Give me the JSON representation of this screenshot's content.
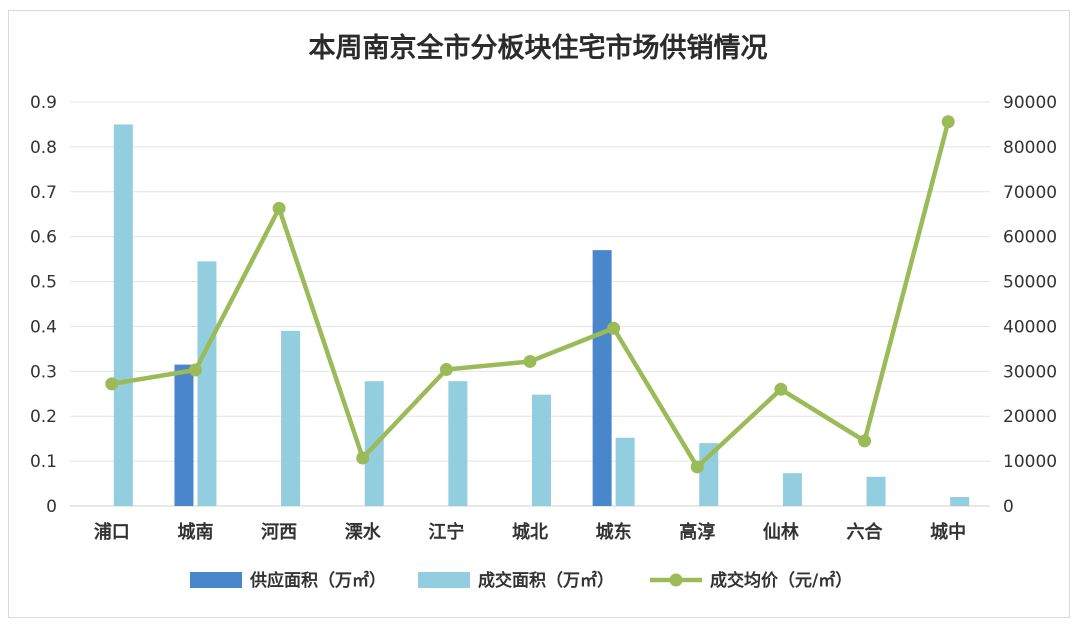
{
  "chart_data": {
    "type": "bar",
    "title": "本周南京全市分板块住宅市场供销情况",
    "categories": [
      "浦口",
      "城南",
      "河西",
      "溧水",
      "江宁",
      "城北",
      "城东",
      "高淳",
      "仙林",
      "六合",
      "城中"
    ],
    "series": [
      {
        "name": "供应面积（万㎡）",
        "type": "bar",
        "axis": "left",
        "color": "#4a86cc",
        "values": [
          0,
          0.315,
          0,
          0,
          0,
          0,
          0.57,
          0,
          0,
          0,
          0
        ]
      },
      {
        "name": "成交面积（万㎡）",
        "type": "bar",
        "axis": "left",
        "color": "#92cde0",
        "values": [
          0.85,
          0.545,
          0.39,
          0.278,
          0.278,
          0.248,
          0.152,
          0.14,
          0.073,
          0.065,
          0.02
        ]
      },
      {
        "name": "成交均价（元/㎡）",
        "type": "line",
        "axis": "right",
        "color": "#9bbb59",
        "values": [
          27200,
          30300,
          66300,
          10700,
          30400,
          32200,
          39600,
          8700,
          26000,
          14500,
          85600
        ]
      }
    ],
    "y_left": {
      "min": 0,
      "max": 0.9,
      "ticks": [
        "0",
        "0.1",
        "0.2",
        "0.3",
        "0.4",
        "0.5",
        "0.6",
        "0.7",
        "0.8",
        "0.9"
      ]
    },
    "y_right": {
      "min": 0,
      "max": 90000,
      "ticks": [
        "0",
        "10000",
        "20000",
        "30000",
        "40000",
        "50000",
        "60000",
        "70000",
        "80000",
        "90000"
      ]
    },
    "grid": true,
    "legend": "bottom"
  }
}
